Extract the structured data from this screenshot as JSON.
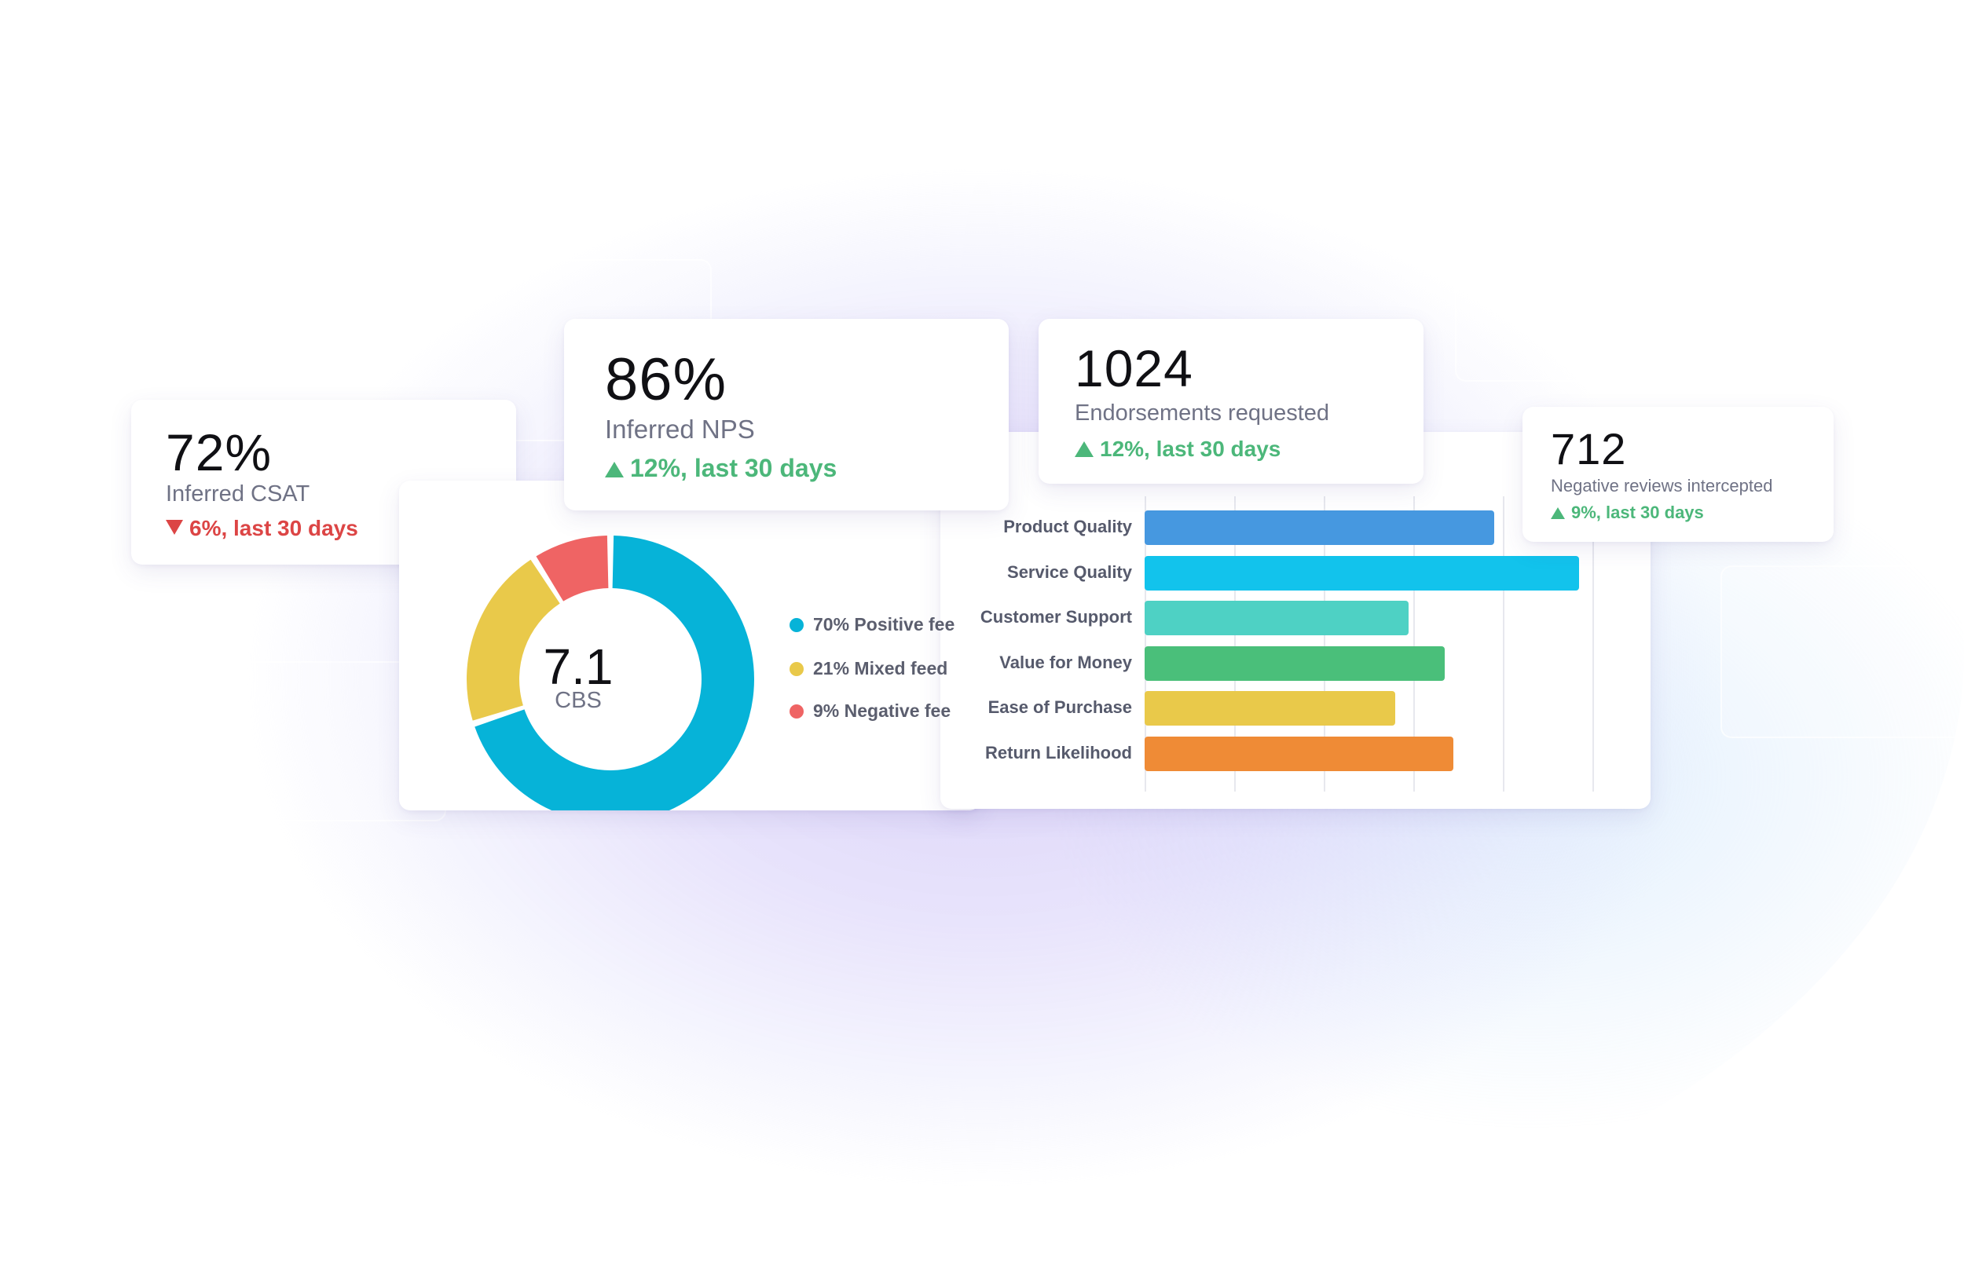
{
  "kpis": {
    "csat": {
      "value": "72%",
      "label": "Inferred CSAT",
      "change": "6%, last 30 days",
      "direction": "down"
    },
    "nps": {
      "value": "86%",
      "label": "Inferred NPS",
      "change": "12%, last 30 days",
      "direction": "up"
    },
    "endorsements": {
      "value": "1024",
      "label": "Endorsements requested",
      "change": "12%, last 30 days",
      "direction": "up"
    },
    "negative_reviews": {
      "value": "712",
      "label": "Negative reviews intercepted",
      "change": "9%, last 30 days",
      "direction": "up"
    }
  },
  "donut": {
    "center_value": "7.1",
    "center_label": "CBS",
    "legend": [
      {
        "text": "70% Positive fee",
        "color": "#06b3d8"
      },
      {
        "text": "21% Mixed feed",
        "color": "#e9c94a"
      },
      {
        "text": "9% Negative fee",
        "color": "#ef6464"
      }
    ]
  },
  "chart_data": [
    {
      "type": "pie",
      "title": "CBS",
      "categories": [
        "Positive feedback",
        "Mixed feedback",
        "Negative feedback"
      ],
      "values": [
        70,
        21,
        9
      ],
      "colors": [
        "#06b3d8",
        "#e9c94a",
        "#ef6464"
      ],
      "center_value": 7.1
    },
    {
      "type": "bar",
      "orientation": "horizontal",
      "categories": [
        "Product Quality",
        "Service Quality",
        "Customer Support",
        "Value for Money",
        "Ease of Purchase",
        "Return Likelihood"
      ],
      "values": [
        78,
        97,
        59,
        67,
        56,
        69
      ],
      "colors": [
        "#4698e0",
        "#12c3ec",
        "#4ed1c4",
        "#4abf7a",
        "#e9c94a",
        "#ef8b36"
      ],
      "xlim": [
        0,
        100
      ],
      "grid": true
    }
  ],
  "colors": {
    "up": "#4cb77a",
    "down": "#dc4545"
  }
}
